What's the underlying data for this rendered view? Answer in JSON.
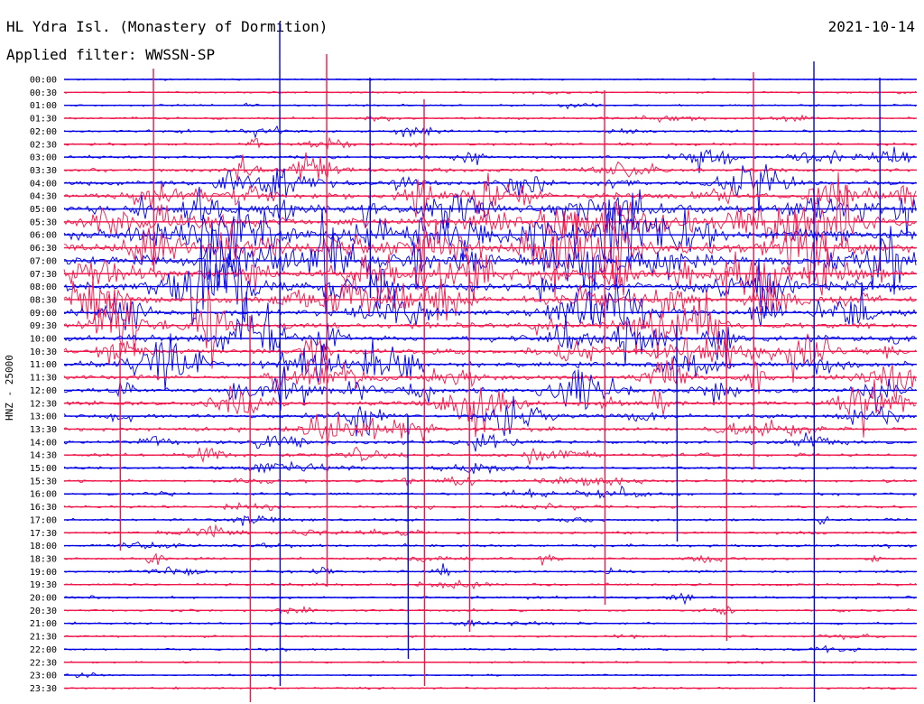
{
  "header": {
    "station": "HL Ydra Isl. (Monastery of Dormition)",
    "filter": "Applied filter: WWSSN-SP",
    "date": "2021-10-14"
  },
  "chart_data": {
    "type": "line",
    "title": "HL Ydra Isl. (Monastery of Dormition)",
    "ylabel": "HNZ - 25000",
    "grid": false,
    "colors": [
      "#0000e6",
      "#f0174b"
    ],
    "rows": [
      "00:00",
      "00:30",
      "01:00",
      "01:30",
      "02:00",
      "02:30",
      "03:00",
      "03:30",
      "04:00",
      "04:30",
      "05:00",
      "05:30",
      "06:00",
      "06:30",
      "07:00",
      "07:30",
      "08:00",
      "08:30",
      "09:00",
      "09:30",
      "10:00",
      "10:30",
      "11:00",
      "11:30",
      "12:00",
      "12:30",
      "13:00",
      "13:30",
      "14:00",
      "14:30",
      "15:00",
      "15:30",
      "16:00",
      "16:30",
      "17:00",
      "17:30",
      "18:00",
      "18:30",
      "19:00",
      "19:30",
      "20:00",
      "20:30",
      "21:00",
      "21:30",
      "22:00",
      "22:30",
      "23:00",
      "23:30"
    ],
    "activity": [
      0.05,
      0.1,
      0.15,
      0.25,
      0.3,
      0.35,
      0.55,
      0.75,
      1.1,
      1.4,
      1.9,
      2.4,
      2.7,
      2.8,
      2.6,
      2.4,
      2.2,
      1.9,
      1.7,
      1.5,
      1.45,
      1.4,
      1.3,
      1.2,
      1.2,
      1.0,
      0.85,
      0.75,
      0.65,
      0.55,
      0.5,
      0.45,
      0.45,
      0.42,
      0.4,
      0.4,
      0.38,
      0.36,
      0.34,
      0.32,
      0.3,
      0.28,
      0.25,
      0.22,
      0.18,
      0.15,
      0.12,
      0.1
    ]
  }
}
